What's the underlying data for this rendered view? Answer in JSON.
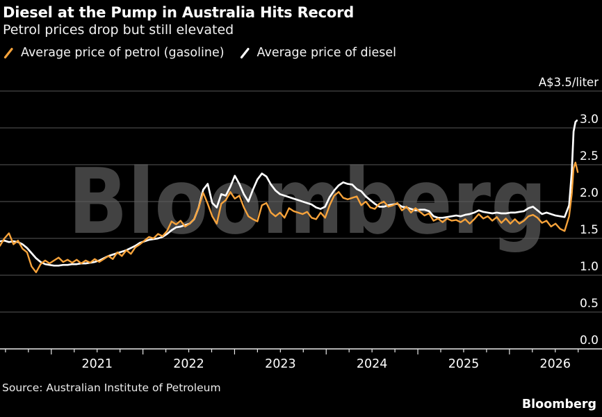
{
  "header": {
    "title": "Diesel at the Pump in Australia Hits Record",
    "subtitle": "Petrol prices drop but still elevated"
  },
  "legend": {
    "items": [
      {
        "label": "Average price of petrol (gasoline)",
        "color": "#f7a33b"
      },
      {
        "label": "Average price of diesel",
        "color": "#ffffff"
      }
    ]
  },
  "watermark": "Bloomberg",
  "footer": {
    "source": "Source: Australian Institute of Petroleum",
    "brand": "Bloomberg"
  },
  "colors": {
    "background": "#000000",
    "petrol": "#f7a33b",
    "diesel": "#ffffff",
    "gridline": "#595959",
    "axis": "#ebebeb",
    "tick_text": "#ffffff",
    "watermark": "#424242"
  },
  "chart_data": {
    "type": "line",
    "title": "Diesel at the Pump in Australia Hits Record",
    "subtitle": "Petrol prices drop but still elevated",
    "ylabel": "A$/liter",
    "y_top_label": "A$3.5/liter",
    "ylim": [
      0,
      3.5
    ],
    "y_tick_step": 0.5,
    "x_range": [
      2020.44,
      2027.01
    ],
    "x_year_ticks": [
      2021,
      2022,
      2023,
      2024,
      2025,
      2026
    ],
    "x_minor_tick_step_years": 0.25,
    "grid": "horizontal",
    "legend_position": "top-left",
    "series": [
      {
        "id": "petrol",
        "name": "Average price of petrol (gasoline)",
        "color": "#f7a33b",
        "t_start": 2020.439,
        "t_step": 0.0493,
        "values": [
          1.4,
          1.5,
          1.57,
          1.42,
          1.47,
          1.36,
          1.31,
          1.12,
          1.04,
          1.15,
          1.2,
          1.16,
          1.2,
          1.24,
          1.18,
          1.21,
          1.17,
          1.21,
          1.16,
          1.2,
          1.17,
          1.22,
          1.18,
          1.22,
          1.26,
          1.22,
          1.31,
          1.26,
          1.34,
          1.29,
          1.38,
          1.42,
          1.47,
          1.52,
          1.5,
          1.56,
          1.53,
          1.6,
          1.73,
          1.69,
          1.74,
          1.66,
          1.7,
          1.76,
          1.92,
          2.12,
          1.97,
          1.8,
          1.7,
          1.97,
          2.02,
          2.13,
          2.04,
          2.08,
          1.92,
          1.8,
          1.76,
          1.73,
          1.95,
          1.98,
          1.85,
          1.8,
          1.85,
          1.78,
          1.91,
          1.87,
          1.85,
          1.83,
          1.86,
          1.78,
          1.76,
          1.85,
          1.78,
          1.95,
          2.08,
          2.13,
          2.05,
          2.03,
          2.05,
          2.07,
          1.95,
          2.0,
          1.92,
          1.9,
          1.97,
          2.0,
          1.93,
          1.95,
          1.98,
          1.88,
          1.93,
          1.85,
          1.91,
          1.86,
          1.81,
          1.84,
          1.74,
          1.77,
          1.72,
          1.77,
          1.74,
          1.75,
          1.72,
          1.76,
          1.7,
          1.76,
          1.83,
          1.77,
          1.8,
          1.74,
          1.79,
          1.71,
          1.77,
          1.7,
          1.76,
          1.7,
          1.74,
          1.8,
          1.82,
          1.78,
          1.71,
          1.74,
          1.66,
          1.7,
          1.63,
          1.6,
          1.8
        ],
        "tail_points": [
          [
            2026.68,
            2.1
          ],
          [
            2026.7,
            2.45
          ],
          [
            2026.72,
            2.53
          ],
          [
            2026.745,
            2.4
          ]
        ]
      },
      {
        "id": "diesel",
        "name": "Average price of diesel",
        "color": "#ffffff",
        "t_start": 2020.439,
        "t_step": 0.0493,
        "values": [
          1.46,
          1.47,
          1.45,
          1.46,
          1.45,
          1.42,
          1.37,
          1.3,
          1.23,
          1.18,
          1.15,
          1.14,
          1.13,
          1.13,
          1.14,
          1.14,
          1.15,
          1.15,
          1.16,
          1.16,
          1.17,
          1.18,
          1.2,
          1.23,
          1.26,
          1.28,
          1.3,
          1.32,
          1.34,
          1.37,
          1.4,
          1.44,
          1.46,
          1.48,
          1.49,
          1.5,
          1.52,
          1.56,
          1.61,
          1.65,
          1.66,
          1.68,
          1.7,
          1.76,
          1.92,
          2.16,
          2.24,
          1.98,
          1.92,
          2.1,
          2.08,
          2.2,
          2.35,
          2.24,
          2.1,
          2.0,
          2.16,
          2.3,
          2.38,
          2.34,
          2.23,
          2.15,
          2.1,
          2.08,
          2.06,
          2.04,
          2.02,
          2.0,
          1.98,
          1.96,
          1.92,
          1.9,
          1.93,
          2.06,
          2.15,
          2.22,
          2.26,
          2.24,
          2.23,
          2.17,
          2.14,
          2.07,
          2.02,
          1.97,
          1.93,
          1.93,
          1.95,
          1.96,
          1.97,
          1.93,
          1.92,
          1.9,
          1.88,
          1.89,
          1.89,
          1.87,
          1.8,
          1.78,
          1.78,
          1.79,
          1.8,
          1.81,
          1.8,
          1.82,
          1.83,
          1.85,
          1.88,
          1.86,
          1.85,
          1.84,
          1.85,
          1.84,
          1.84,
          1.85,
          1.85,
          1.86,
          1.87,
          1.91,
          1.93,
          1.88,
          1.83,
          1.85,
          1.83,
          1.81,
          1.8,
          1.79,
          1.95
        ],
        "tail_points": [
          [
            2026.68,
            2.4
          ],
          [
            2026.7,
            2.95
          ],
          [
            2026.72,
            3.08
          ],
          [
            2026.735,
            3.1
          ]
        ]
      }
    ]
  }
}
